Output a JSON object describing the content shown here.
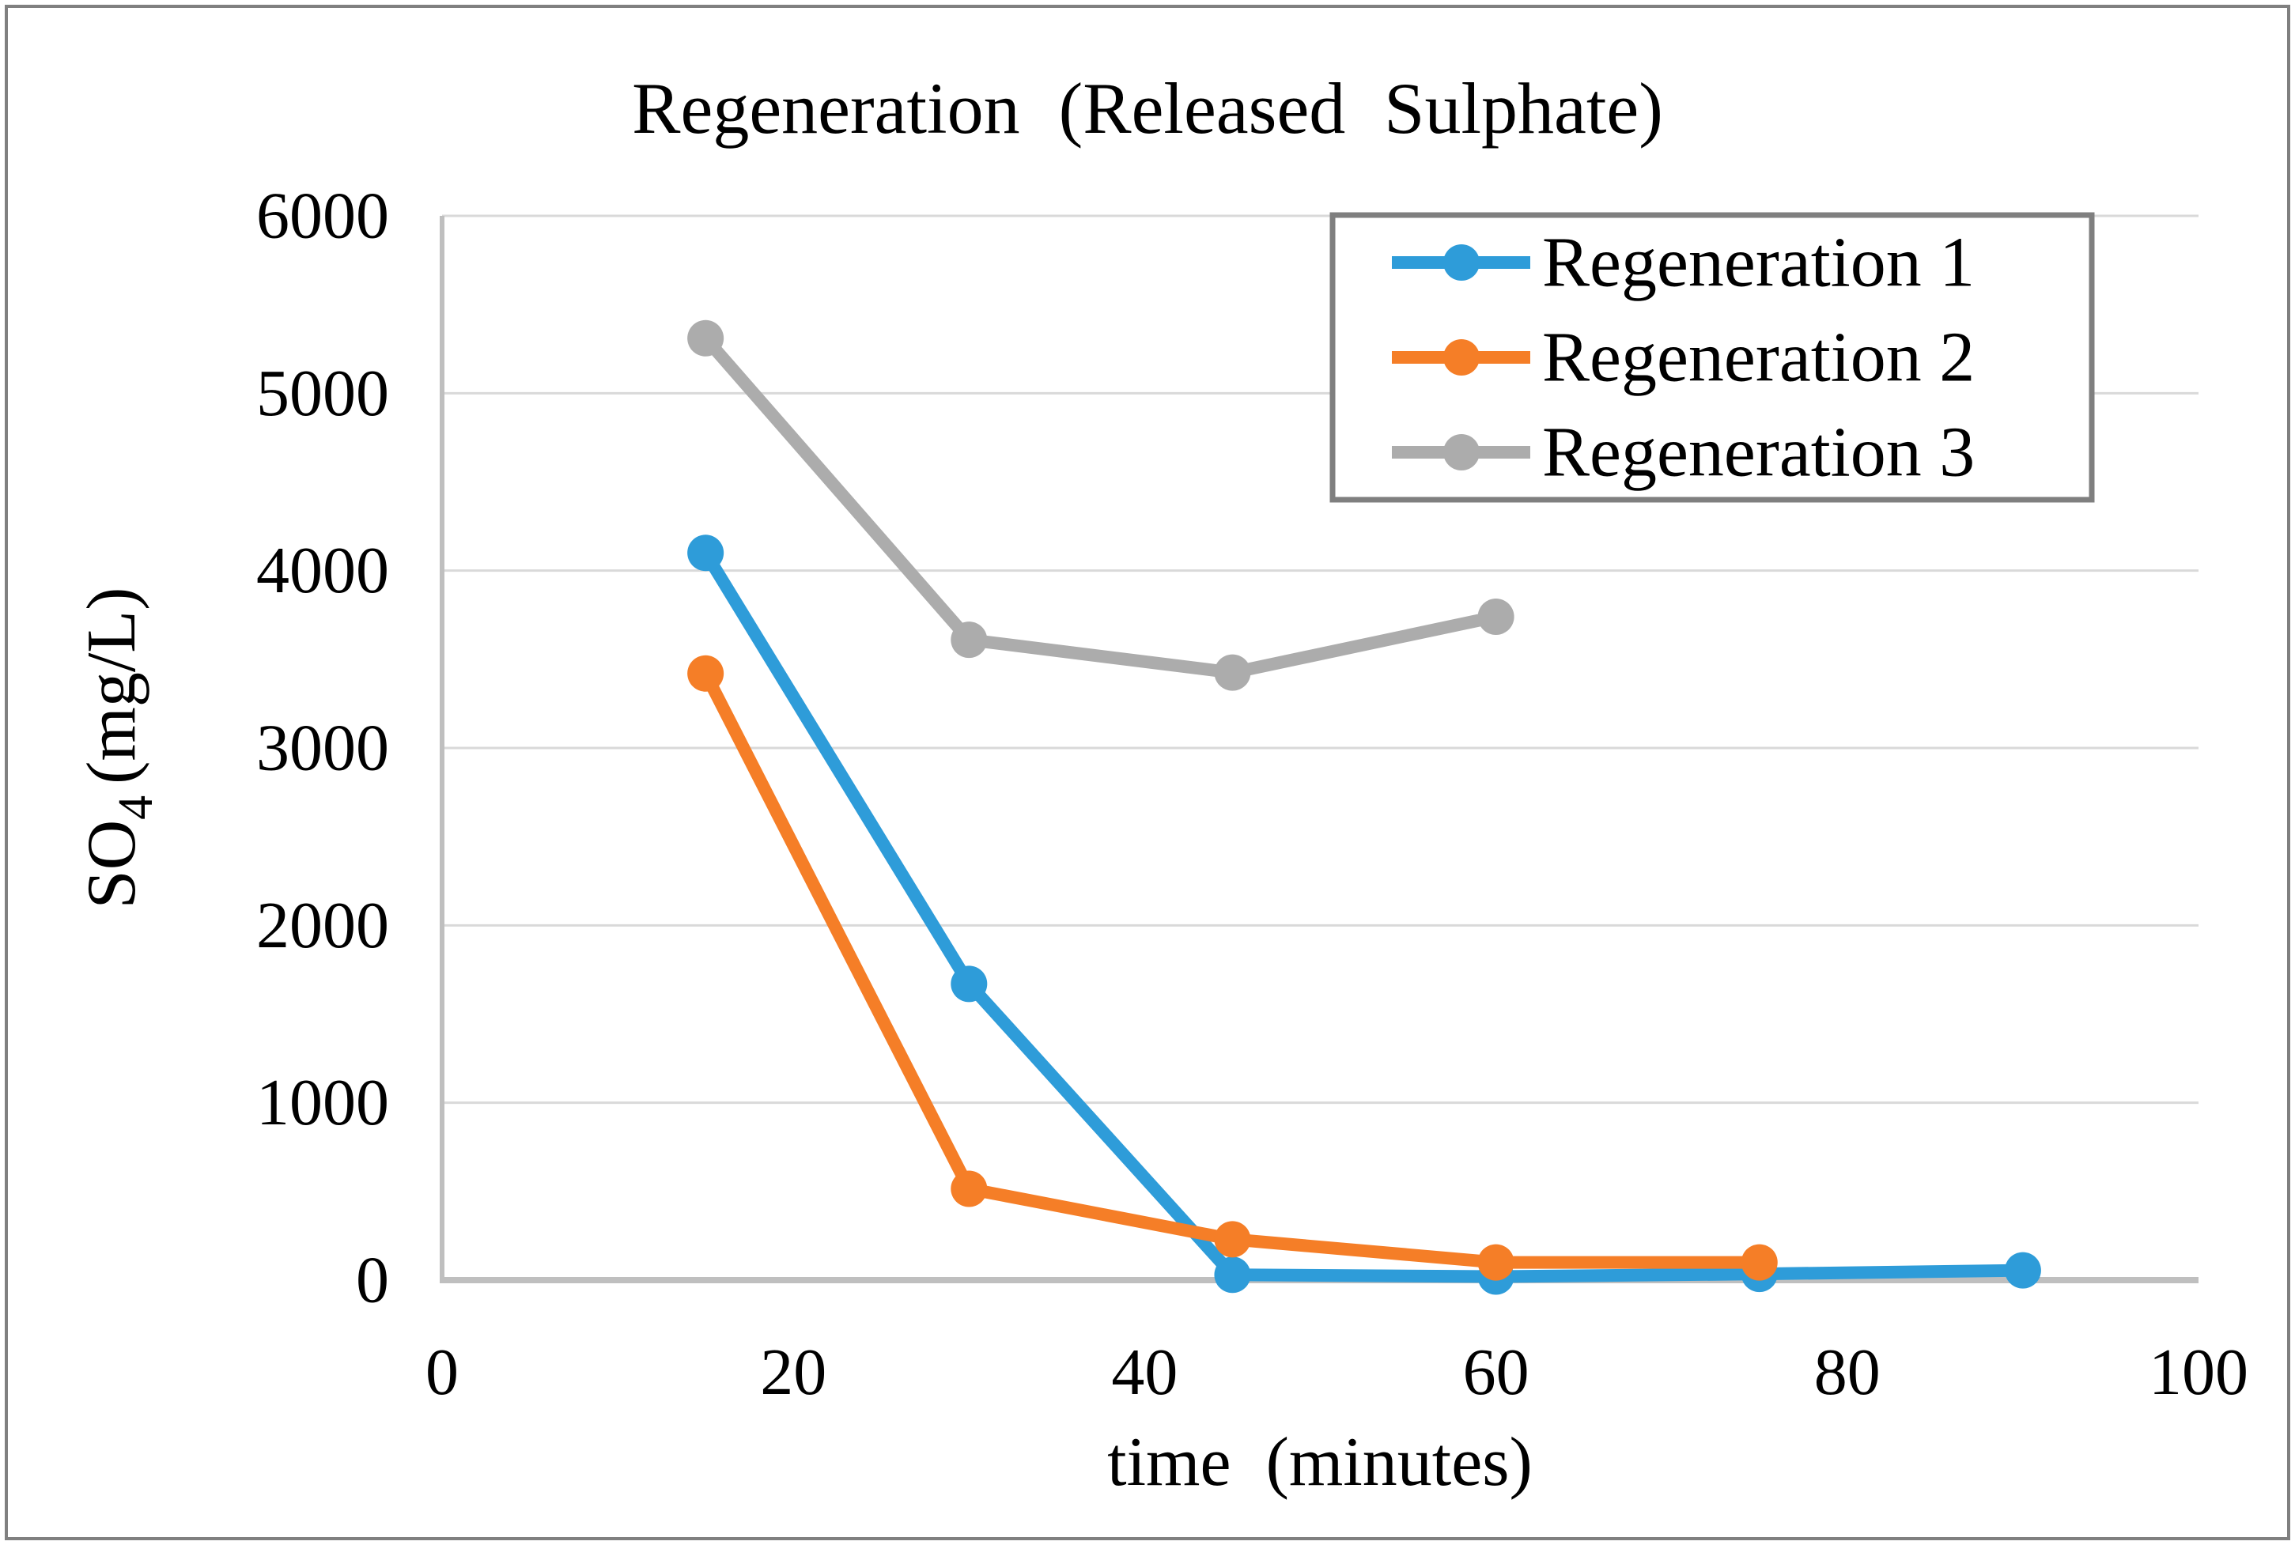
{
  "chart_data": {
    "type": "line",
    "title": "Regeneration (Released Sulphate)",
    "xlabel": "time (minutes)",
    "ylabel": "SO4 (mg/L)",
    "ylabel_parts": {
      "main": "SO",
      "sub": "4",
      "unit": "(mg/L)"
    },
    "xlim": [
      0,
      100
    ],
    "ylim": [
      0,
      6000
    ],
    "xticks": [
      0,
      20,
      40,
      60,
      80,
      100
    ],
    "yticks": [
      0,
      1000,
      2000,
      3000,
      4000,
      5000,
      6000
    ],
    "grid": "horizontal-only",
    "legend_position": "inside-top-right",
    "colors": {
      "gridline": "#D9D9D9",
      "axis": "#BFBFBF",
      "frame_border": "#808080",
      "legend_border": "#7F7F7F",
      "text": "#000000"
    },
    "series": [
      {
        "name": "Regeneration 1",
        "color": "#2E9CD9",
        "x": [
          15,
          30,
          45,
          60,
          75,
          90
        ],
        "y": [
          4100,
          1670,
          30,
          20,
          35,
          55
        ]
      },
      {
        "name": "Regeneration 2",
        "color": "#F57E27",
        "x": [
          15,
          30,
          45,
          60,
          75
        ],
        "y": [
          3420,
          515,
          230,
          100,
          100
        ]
      },
      {
        "name": "Regeneration 3",
        "color": "#ACACAC",
        "x": [
          15,
          30,
          45,
          60
        ],
        "y": [
          5310,
          3610,
          3425,
          3740
        ]
      }
    ]
  }
}
